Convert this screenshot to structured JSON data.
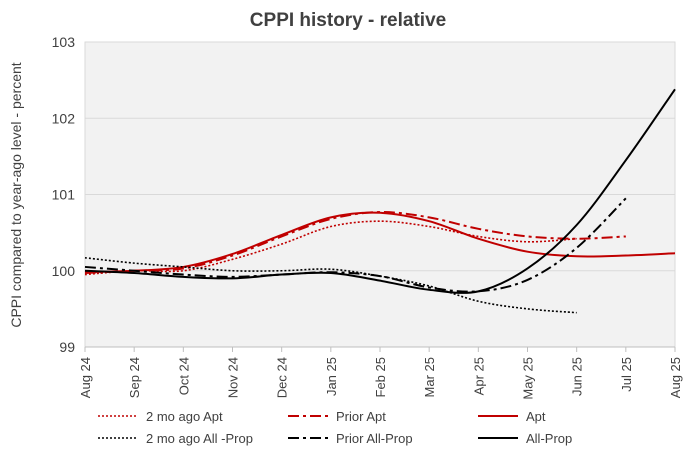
{
  "chart_data": {
    "type": "line",
    "title": "CPPI history - relative",
    "xlabel": "",
    "ylabel": "CPPI compared to year-ago level - percent",
    "ylim": [
      99,
      103
    ],
    "yticks": [
      "99",
      "100",
      "101",
      "102",
      "103"
    ],
    "categories": [
      "Aug 24",
      "Sep 24",
      "Oct 24",
      "Nov 24",
      "Dec 24",
      "Jan 25",
      "Feb 25",
      "Mar 25",
      "Apr 25",
      "May 25",
      "Jun 25",
      "Jul 25",
      "Aug 25"
    ],
    "grid": "horizontal",
    "legend_position": "bottom",
    "series": [
      {
        "name": "2 mo ago Apt",
        "color": "#c00000",
        "style": "dotted",
        "values": [
          99.95,
          100.0,
          100.0,
          100.15,
          100.35,
          100.58,
          100.65,
          100.58,
          100.45,
          100.38,
          100.42,
          null,
          null
        ]
      },
      {
        "name": "Prior Apt",
        "color": "#c00000",
        "style": "dashdot",
        "values": [
          99.97,
          100.0,
          100.03,
          100.2,
          100.45,
          100.68,
          100.77,
          100.7,
          100.55,
          100.45,
          100.42,
          100.45,
          null
        ]
      },
      {
        "name": "Apt",
        "color": "#c00000",
        "style": "solid",
        "values": [
          99.98,
          100.0,
          100.05,
          100.22,
          100.47,
          100.7,
          100.76,
          100.65,
          100.42,
          100.25,
          100.19,
          100.2,
          100.23
        ]
      },
      {
        "name": "2 mo ago All -Prop",
        "color": "#000000",
        "style": "dotted",
        "values": [
          100.17,
          100.1,
          100.05,
          100.0,
          100.0,
          100.02,
          99.93,
          99.8,
          99.6,
          99.5,
          99.45,
          null,
          null
        ]
      },
      {
        "name": "Prior All-Prop",
        "color": "#000000",
        "style": "dashdot",
        "values": [
          100.05,
          100.0,
          99.95,
          99.92,
          99.95,
          99.98,
          99.93,
          99.78,
          99.73,
          99.88,
          100.3,
          100.95,
          null
        ]
      },
      {
        "name": "All-Prop",
        "color": "#000000",
        "style": "solid",
        "values": [
          100.0,
          99.97,
          99.92,
          99.9,
          99.95,
          99.97,
          99.87,
          99.75,
          99.73,
          100.03,
          100.6,
          101.45,
          102.38
        ]
      }
    ]
  }
}
